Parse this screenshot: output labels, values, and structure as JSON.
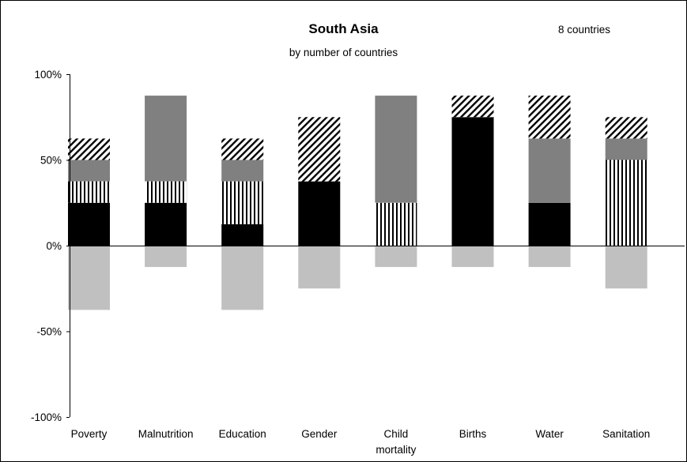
{
  "chart_data": {
    "type": "bar",
    "stacked": true,
    "title": "South Asia",
    "subtitle": "by number of countries",
    "annotation": "8 countries",
    "categories": [
      "Poverty",
      "Malnutrition",
      "Education",
      "Gender",
      "Child mortality",
      "Births",
      "Water",
      "Sanitation"
    ],
    "category_labels": [
      [
        "Poverty"
      ],
      [
        "Malnutrition"
      ],
      [
        "Education"
      ],
      [
        "Gender"
      ],
      [
        "Child",
        "mortality"
      ],
      [
        "Births"
      ],
      [
        "Water"
      ],
      [
        "Sanitation"
      ]
    ],
    "series": [
      {
        "pattern": "solid-black",
        "color": "#000000",
        "values": [
          25,
          25,
          12.5,
          37.5,
          0,
          75,
          25,
          0
        ]
      },
      {
        "pattern": "vertical-stripes",
        "color": "#000000",
        "values": [
          12.5,
          12.5,
          25,
          0,
          25,
          0,
          0,
          50
        ]
      },
      {
        "pattern": "solid-dark-gray",
        "color": "#808080",
        "values": [
          12.5,
          50,
          12.5,
          0,
          62.5,
          0,
          37.5,
          12.5
        ]
      },
      {
        "pattern": "diagonal-hatch",
        "color": "#000000",
        "values": [
          12.5,
          0,
          12.5,
          37.5,
          0,
          12.5,
          25,
          12.5
        ]
      },
      {
        "pattern": "solid-light-gray",
        "color": "#c0c0c0",
        "values": [
          -37.5,
          -12.5,
          -37.5,
          -25,
          -12.5,
          -12.5,
          -12.5,
          -25
        ]
      }
    ],
    "y_ticks": [
      "100%",
      "50%",
      "0%",
      "-50%",
      "-100%"
    ],
    "y_tick_values": [
      100,
      50,
      0,
      -50,
      -100
    ],
    "ylim": [
      -100,
      100
    ],
    "grid": false,
    "legend": "none"
  }
}
